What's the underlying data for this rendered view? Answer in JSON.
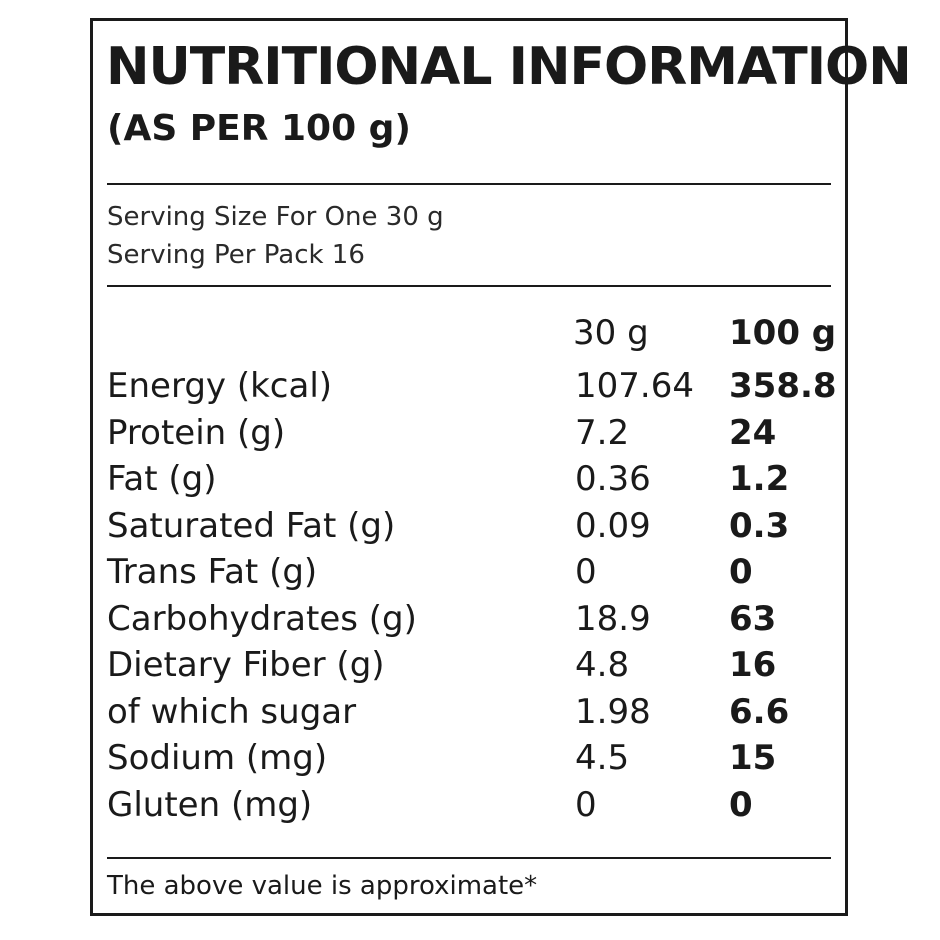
{
  "title": "NUTRITIONAL INFORMATION",
  "subtitle": "(AS PER 100 g)",
  "serving": {
    "size": "Serving Size For One 30 g",
    "per_pack": "Serving Per Pack 16"
  },
  "columns": {
    "per_serving": "30 g",
    "per_100": "100 g"
  },
  "rows": [
    {
      "label": "Energy (kcal)",
      "per_serving": "107.64",
      "per_100": "358.8"
    },
    {
      "label": "Protein (g)",
      "per_serving": "7.2",
      "per_100": "24"
    },
    {
      "label": "Fat (g)",
      "per_serving": "0.36",
      "per_100": "1.2"
    },
    {
      "label": "Saturated Fat (g)",
      "per_serving": "0.09",
      "per_100": "0.3"
    },
    {
      "label": "Trans Fat (g)",
      "per_serving": "0",
      "per_100": "0"
    },
    {
      "label": "Carbohydrates (g)",
      "per_serving": "18.9",
      "per_100": "63"
    },
    {
      "label": "Dietary Fiber (g)",
      "per_serving": "4.8",
      "per_100": "16"
    },
    {
      "label": "of which sugar",
      "per_serving": "1.98",
      "per_100": "6.6"
    },
    {
      "label": "Sodium (mg)",
      "per_serving": "4.5",
      "per_100": "15"
    },
    {
      "label": "Gluten (mg)",
      "per_serving": "0",
      "per_100": "0"
    }
  ],
  "footnote": "The above value is approximate*"
}
